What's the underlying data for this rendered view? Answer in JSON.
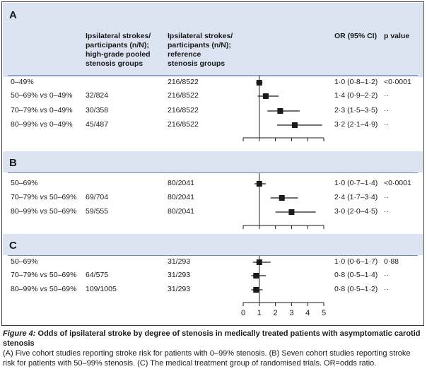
{
  "headers": {
    "col1": [
      "Ipsilateral strokes/",
      "participants (n/N);",
      "high-grade pooled",
      "stenosis groups"
    ],
    "col2": [
      "Ipsilateral strokes/",
      "participants (n/N);",
      "reference",
      "stenosis groups"
    ],
    "or": "OR (95% CI)",
    "p": "p value"
  },
  "caption": {
    "figure_label": "Figure 4:",
    "title": "Odds of ipsilateral stroke by degree of stenosis in medically treated patients with asymptomatic carotid stenosis",
    "text": "(A) Five cohort studies reporting stroke risk for patients with 0–99% stenosis. (B) Seven cohort studies reporting stroke risk for patients with 50–99% stenosis. (C) The medical treatment group of randomised trials. OR=odds ratio."
  },
  "chart_data": {
    "type": "forest",
    "xlim": [
      0,
      5
    ],
    "reference_line": 1,
    "x_ticks": [
      "0",
      "1",
      "2",
      "3",
      "4",
      "5"
    ],
    "panels": [
      {
        "label": "A",
        "rows": [
          {
            "label": "0–49%",
            "cmp": "",
            "high": "",
            "ref": "216/8522",
            "or": 1.0,
            "lo": 0.8,
            "hi": 1.2,
            "or_text": "1·0 (0·8–1·2)",
            "p": "<0·0001"
          },
          {
            "label": "50–69%",
            "cmp": "0–49%",
            "high": "32/824",
            "ref": "216/8522",
            "or": 1.4,
            "lo": 0.9,
            "hi": 2.2,
            "or_text": "1·4 (0·9–2·2)",
            "p": "··"
          },
          {
            "label": "70–79%",
            "cmp": "0–49%",
            "high": "30/358",
            "ref": "216/8522",
            "or": 2.3,
            "lo": 1.5,
            "hi": 3.5,
            "or_text": "2·3 (1·5–3·5)",
            "p": "··"
          },
          {
            "label": "80–99%",
            "cmp": "0–49%",
            "high": "45/487",
            "ref": "216/8522",
            "or": 3.2,
            "lo": 2.1,
            "hi": 4.9,
            "or_text": "3·2 (2·1–4·9)",
            "p": "··"
          }
        ]
      },
      {
        "label": "B",
        "rows": [
          {
            "label": "50–69%",
            "cmp": "",
            "high": "",
            "ref": "80/2041",
            "or": 1.0,
            "lo": 0.7,
            "hi": 1.4,
            "or_text": "1·0 (0·7–1·4)",
            "p": "<0·0001"
          },
          {
            "label": "70–79%",
            "cmp": "50–69%",
            "high": "69/704",
            "ref": "80/2041",
            "or": 2.4,
            "lo": 1.7,
            "hi": 3.4,
            "or_text": "2·4 (1·7–3·4)",
            "p": "··"
          },
          {
            "label": "80–99%",
            "cmp": "50–69%",
            "high": "59/555",
            "ref": "80/2041",
            "or": 3.0,
            "lo": 2.0,
            "hi": 4.5,
            "or_text": "3·0 (2·0–4·5)",
            "p": "··"
          }
        ]
      },
      {
        "label": "C",
        "rows": [
          {
            "label": "50–69%",
            "cmp": "",
            "high": "",
            "ref": "31/293",
            "or": 1.0,
            "lo": 0.6,
            "hi": 1.7,
            "or_text": "1·0 (0·6–1·7)",
            "p": "0·88"
          },
          {
            "label": "70–79%",
            "cmp": "50–69%",
            "high": "64/575",
            "ref": "31/293",
            "or": 0.8,
            "lo": 0.5,
            "hi": 1.4,
            "or_text": "0·8 (0·5–1·4)",
            "p": "··"
          },
          {
            "label": "80–99%",
            "cmp": "50–69%",
            "high": "109/1005",
            "ref": "31/293",
            "or": 0.8,
            "lo": 0.5,
            "hi": 1.2,
            "or_text": "0·8 (0·5–1·2)",
            "p": "··"
          }
        ]
      }
    ]
  }
}
